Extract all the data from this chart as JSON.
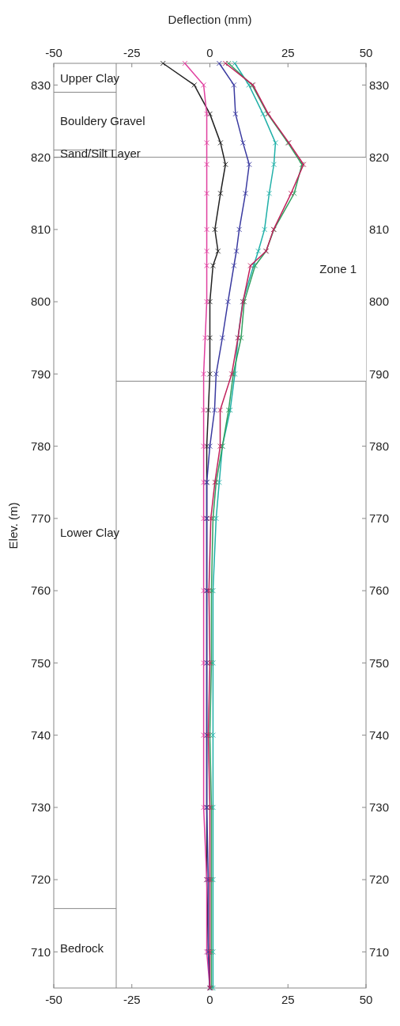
{
  "chart_data": {
    "type": "line",
    "x2label": "Deflection (mm)",
    "ylabel": "Elev. (m)",
    "xlim": [
      -50,
      50
    ],
    "xticks": [
      -50,
      -25,
      0,
      25,
      50
    ],
    "x2lim": [
      -50,
      50
    ],
    "x2ticks": [
      -50,
      -25,
      0,
      25,
      50
    ],
    "ylim": [
      705,
      833
    ],
    "yticks": [
      710,
      720,
      730,
      740,
      750,
      760,
      770,
      780,
      790,
      800,
      810,
      820,
      830
    ],
    "y2lim": [
      705,
      833
    ],
    "y2ticks": [
      710,
      720,
      730,
      740,
      750,
      760,
      770,
      780,
      790,
      800,
      810,
      820,
      830
    ],
    "marker": "cross",
    "line_style": "solid",
    "series": [
      {
        "color": "#222222",
        "x": [
          -15,
          -5,
          0,
          3.4,
          5,
          3.4,
          1.6,
          2.6,
          1,
          0,
          0,
          0,
          -0.5,
          -1,
          -1,
          -1,
          -1,
          -1,
          -1,
          -1,
          -1,
          -0.5,
          0
        ],
        "values": [
          833,
          830,
          826,
          822,
          819,
          815,
          810,
          807,
          805,
          800,
          795,
          790,
          785,
          780,
          775,
          770,
          760,
          750,
          740,
          730,
          720,
          710,
          705
        ]
      },
      {
        "color": "#e0409f",
        "x": [
          -8,
          -2,
          -1,
          -1,
          -1,
          -1,
          -1,
          -1,
          -1,
          -1,
          -1.5,
          -2,
          -2,
          -2,
          -2,
          -2,
          -2,
          -2,
          -2,
          -2,
          -1,
          -1,
          0
        ],
        "values": [
          833,
          830,
          826,
          822,
          819,
          815,
          810,
          807,
          805,
          800,
          795,
          790,
          785,
          780,
          775,
          770,
          760,
          750,
          740,
          730,
          720,
          710,
          705
        ]
      },
      {
        "color": "#3a3aa0",
        "x": [
          3,
          7.7,
          8.2,
          10.6,
          12.6,
          11.4,
          9.4,
          8.5,
          7.7,
          5.8,
          4,
          2,
          1.5,
          0,
          -1,
          -1,
          -1,
          -1,
          -1,
          -1,
          -0.5,
          -0.5,
          0
        ],
        "values": [
          833,
          830,
          826,
          822,
          819,
          815,
          810,
          807,
          805,
          800,
          795,
          790,
          785,
          780,
          775,
          770,
          760,
          750,
          740,
          730,
          720,
          710,
          705
        ]
      },
      {
        "color": "#20b0a8",
        "x": [
          8,
          12.5,
          17,
          21,
          20.5,
          19,
          17.5,
          15.5,
          14,
          10.5,
          9,
          8,
          6.5,
          4,
          3,
          2,
          1,
          1,
          1,
          1,
          1,
          1,
          1
        ],
        "values": [
          833,
          830,
          826,
          822,
          819,
          815,
          810,
          807,
          805,
          800,
          795,
          790,
          785,
          780,
          775,
          770,
          760,
          750,
          740,
          730,
          720,
          710,
          705
        ]
      },
      {
        "color": "#30a060",
        "x": [
          6,
          13.5,
          18.5,
          25,
          29.5,
          27,
          20.5,
          18,
          14.5,
          11,
          10,
          7.5,
          6,
          4,
          2,
          1,
          0.5,
          0.5,
          0,
          0.5,
          0.5,
          0.5,
          0.5
        ],
        "values": [
          833,
          830,
          826,
          822,
          819,
          815,
          810,
          807,
          805,
          800,
          795,
          790,
          785,
          780,
          775,
          770,
          760,
          750,
          740,
          730,
          720,
          710,
          705
        ]
      },
      {
        "color": "#c0205a",
        "x": [
          5,
          13.8,
          18.7,
          25.3,
          30,
          26,
          20.4,
          18,
          13,
          10.6,
          9,
          7,
          3.3,
          3.3,
          1.6,
          0.3,
          -0.3,
          0,
          -0.5,
          0,
          0,
          0,
          0
        ],
        "values": [
          833,
          830,
          826,
          822,
          819,
          815,
          810,
          807,
          805,
          800,
          795,
          790,
          785,
          780,
          775,
          770,
          760,
          750,
          740,
          730,
          720,
          710,
          705
        ]
      }
    ],
    "ref_lines": [
      {
        "axis": "x",
        "value": -30
      },
      {
        "axis": "y",
        "value": 829
      },
      {
        "axis": "y",
        "value": 821
      },
      {
        "axis": "y",
        "value": 820
      },
      {
        "axis": "y",
        "value": 716
      }
    ],
    "bands": [
      {
        "axis": "y",
        "from": 789,
        "to": 820,
        "label": "Zone 1",
        "color": "#ffffff"
      }
    ],
    "annotations": [
      "Upper Clay",
      "Bouldery Gravel",
      "Sand/Silt Layer",
      "Lower Clay",
      "Bedrock"
    ]
  }
}
